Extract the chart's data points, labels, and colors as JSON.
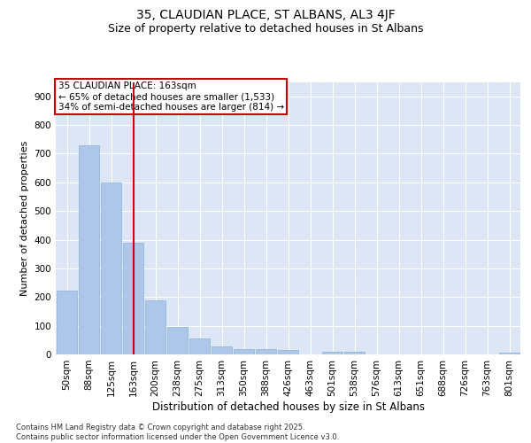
{
  "title_line1": "35, CLAUDIAN PLACE, ST ALBANS, AL3 4JF",
  "title_line2": "Size of property relative to detached houses in St Albans",
  "xlabel": "Distribution of detached houses by size in St Albans",
  "ylabel": "Number of detached properties",
  "categories": [
    "50sqm",
    "88sqm",
    "125sqm",
    "163sqm",
    "200sqm",
    "238sqm",
    "275sqm",
    "313sqm",
    "350sqm",
    "388sqm",
    "426sqm",
    "463sqm",
    "501sqm",
    "538sqm",
    "576sqm",
    "613sqm",
    "651sqm",
    "688sqm",
    "726sqm",
    "763sqm",
    "801sqm"
  ],
  "values": [
    222,
    728,
    600,
    390,
    190,
    97,
    57,
    28,
    20,
    18,
    15,
    0,
    10,
    10,
    0,
    0,
    0,
    0,
    0,
    0,
    7
  ],
  "bar_color": "#aec6e8",
  "bar_edgecolor": "#8ab4d8",
  "vline_index": 3,
  "vline_color": "#cc0000",
  "annotation_text": "35 CLAUDIAN PLACE: 163sqm\n← 65% of detached houses are smaller (1,533)\n34% of semi-detached houses are larger (814) →",
  "annotation_box_color": "#cc0000",
  "ylim": [
    0,
    950
  ],
  "yticks": [
    0,
    100,
    200,
    300,
    400,
    500,
    600,
    700,
    800,
    900
  ],
  "background_color": "#dce6f5",
  "grid_color": "#ffffff",
  "footer_text": "Contains HM Land Registry data © Crown copyright and database right 2025.\nContains public sector information licensed under the Open Government Licence v3.0.",
  "title_fontsize": 10,
  "subtitle_fontsize": 9,
  "xlabel_fontsize": 8.5,
  "ylabel_fontsize": 8,
  "tick_fontsize": 7.5,
  "annot_fontsize": 7.5,
  "footer_fontsize": 6
}
